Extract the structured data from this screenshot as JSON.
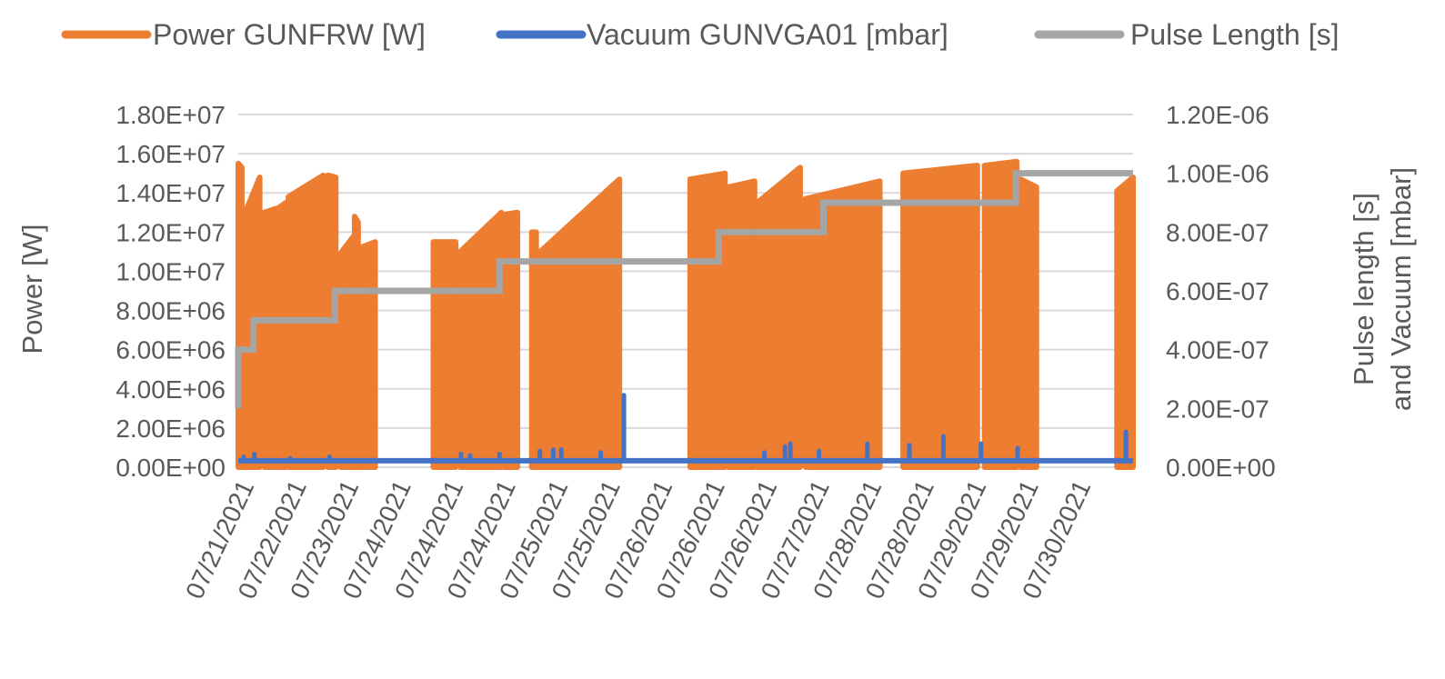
{
  "chart_data": {
    "type": "line",
    "grid": true,
    "legend_position": "top",
    "colors": {
      "power": "#ED7D31",
      "vacuum": "#4472C4",
      "pulse": "#A5A5A5",
      "grid": "#D9D9D9",
      "text": "#595959"
    },
    "y_left": {
      "label": "Power [W]",
      "range": [
        0,
        18000000
      ],
      "ticks": [
        "0.00E+00",
        "2.00E+06",
        "4.00E+06",
        "6.00E+06",
        "8.00E+06",
        "1.00E+07",
        "1.20E+07",
        "1.40E+07",
        "1.60E+07",
        "1.80E+07"
      ]
    },
    "y_right": {
      "label_lines": [
        "Pulse length [s]",
        "and Vacuum [mbar]"
      ],
      "range": [
        0,
        1.2e-06
      ],
      "ticks": [
        "0.00E+00",
        "2.00E-07",
        "4.00E-07",
        "6.00E-07",
        "8.00E-07",
        "1.00E-06",
        "1.20E-06"
      ]
    },
    "x_range": [
      0,
      100
    ],
    "x_tick_labels": [
      "07/21/2021",
      "07/22/2021",
      "07/23/2021",
      "07/24/2021",
      "07/24/2021",
      "07/24/2021",
      "07/25/2021",
      "07/25/2021",
      "07/26/2021",
      "07/26/2021",
      "07/26/2021",
      "07/27/2021",
      "07/28/2021",
      "07/28/2021",
      "07/29/2021",
      "07/29/2021",
      "07/30/2021"
    ],
    "legend": [
      {
        "name": "Power GUNFRW [W]",
        "key": "power"
      },
      {
        "name": "Vacuum GUNVGA01 [mbar]",
        "key": "vacuum"
      },
      {
        "name": "Pulse Length [s]",
        "key": "pulse"
      }
    ],
    "series": [
      {
        "name": "Power GUNFRW [W]",
        "axis": "left",
        "style": "filled-envelope",
        "segments": [
          {
            "x": [
              0.0,
              0.4
            ],
            "top": [
              15500000,
              15300000
            ]
          },
          {
            "x": [
              0.6,
              2.4
            ],
            "top": [
              12800000,
              14800000
            ]
          },
          {
            "x": [
              2.9,
              4.2
            ],
            "top": [
              13000000,
              13200000
            ]
          },
          {
            "x": [
              4.4,
              5.3
            ],
            "top": [
              13200000,
              13500000
            ]
          },
          {
            "x": [
              5.6,
              9.5
            ],
            "top": [
              13800000,
              14900000
            ]
          },
          {
            "x": [
              10.0,
              10.9
            ],
            "top": [
              14900000,
              14800000
            ]
          },
          {
            "x": [
              11.4,
              12.9
            ],
            "top": [
              10900000,
              11800000
            ]
          },
          {
            "x": [
              13.0,
              13.4
            ],
            "top": [
              12800000,
              12500000
            ]
          },
          {
            "x": [
              13.6,
              15.3
            ],
            "top": [
              11200000,
              11500000
            ]
          },
          {
            "x": [
              21.8,
              24.3
            ],
            "top": [
              11500000,
              11500000
            ]
          },
          {
            "x": [
              24.8,
              29.4
            ],
            "top": [
              11000000,
              13000000
            ]
          },
          {
            "x": [
              29.7,
              31.2
            ],
            "top": [
              12900000,
              13000000
            ]
          },
          {
            "x": [
              32.8,
              33.3
            ],
            "top": [
              12000000,
              12000000
            ]
          },
          {
            "x": [
              33.5,
              42.6
            ],
            "top": [
              10900000,
              14700000
            ]
          },
          {
            "x": [
              50.5,
              54.4
            ],
            "top": [
              14700000,
              15000000
            ]
          },
          {
            "x": [
              54.8,
              57.7
            ],
            "top": [
              14300000,
              14600000
            ]
          },
          {
            "x": [
              58.0,
              62.8
            ],
            "top": [
              13500000,
              15300000
            ]
          },
          {
            "x": [
              63.4,
              71.7
            ],
            "top": [
              13700000,
              14600000
            ]
          },
          {
            "x": [
              74.3,
              82.6
            ],
            "top": [
              15000000,
              15400000
            ]
          },
          {
            "x": [
              83.4,
              87.0
            ],
            "top": [
              15400000,
              15600000
            ]
          },
          {
            "x": [
              87.4,
              89.2
            ],
            "top": [
              14700000,
              14300000
            ]
          },
          {
            "x": [
              98.2,
              100.0
            ],
            "top": [
              14100000,
              14800000
            ]
          }
        ]
      },
      {
        "name": "Vacuum GUNVGA01 [mbar]",
        "axis": "right",
        "baseline": 2.2e-08,
        "points": [
          {
            "x": 0.6,
            "y": 3.5e-08
          },
          {
            "x": 1.8,
            "y": 4.5e-08
          },
          {
            "x": 5.8,
            "y": 3e-08
          },
          {
            "x": 10.2,
            "y": 3.5e-08
          },
          {
            "x": 24.9,
            "y": 4.5e-08
          },
          {
            "x": 25.9,
            "y": 4e-08
          },
          {
            "x": 29.2,
            "y": 4.5e-08
          },
          {
            "x": 33.7,
            "y": 5.5e-08
          },
          {
            "x": 35.2,
            "y": 6e-08
          },
          {
            "x": 36.1,
            "y": 6e-08
          },
          {
            "x": 40.5,
            "y": 5e-08
          },
          {
            "x": 43.1,
            "y": 2.45e-07
          },
          {
            "x": 58.8,
            "y": 5e-08
          },
          {
            "x": 61.1,
            "y": 7e-08
          },
          {
            "x": 61.7,
            "y": 8e-08
          },
          {
            "x": 64.9,
            "y": 5.5e-08
          },
          {
            "x": 70.3,
            "y": 8e-08
          },
          {
            "x": 75.0,
            "y": 7.5e-08
          },
          {
            "x": 78.8,
            "y": 1.05e-07
          },
          {
            "x": 83.0,
            "y": 8e-08
          },
          {
            "x": 87.1,
            "y": 6.5e-08
          },
          {
            "x": 99.2,
            "y": 1.2e-07
          }
        ]
      },
      {
        "name": "Pulse Length [s]",
        "axis": "right",
        "style": "step",
        "x": [
          0.0,
          0.0,
          1.7,
          1.7,
          10.8,
          10.8,
          29.2,
          29.2,
          53.7,
          53.7,
          65.4,
          65.4,
          86.9,
          86.9,
          100.0
        ],
        "y": [
          2e-07,
          4e-07,
          4e-07,
          5e-07,
          5e-07,
          6e-07,
          6e-07,
          7e-07,
          7e-07,
          8e-07,
          8e-07,
          9e-07,
          9e-07,
          1e-06,
          1e-06
        ]
      }
    ]
  }
}
